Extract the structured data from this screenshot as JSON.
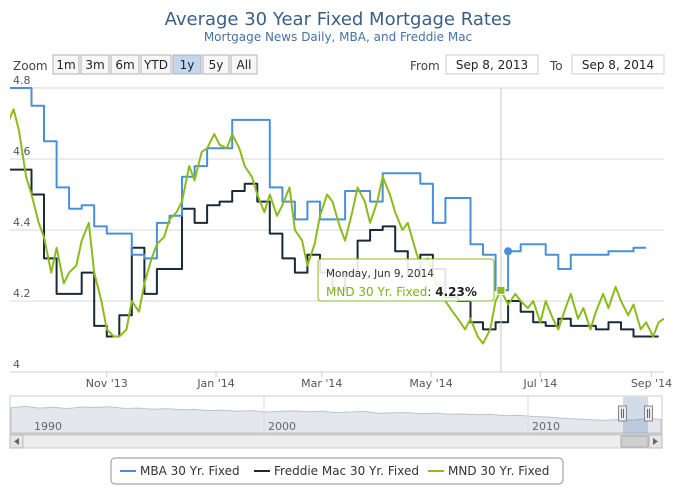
{
  "title": "Average 30 Year Fixed Mortgage Rates",
  "subtitle": "Mortgage News Daily, MBA, and Freddie Mac",
  "zoom": {
    "label": "Zoom",
    "buttons": [
      "1m",
      "3m",
      "6m",
      "YTD",
      "1y",
      "5y",
      "All"
    ],
    "active": "1y"
  },
  "range": {
    "from_label": "From",
    "from_value": "Sep 8, 2013",
    "to_label": "To",
    "to_value": "Sep 8, 2014"
  },
  "tooltip": {
    "date": "Monday, Jun 9, 2014",
    "series": "MND 30 Yr. Fixed",
    "value": "4.23%"
  },
  "navigator": {
    "year_labels": [
      "1990",
      "2000",
      "2010"
    ]
  },
  "colors": {
    "mba": "#4a8fd9",
    "freddie": "#1a2a38",
    "mnd": "#8bbb1c",
    "title": "#3a5f87",
    "subtitle": "#4572a7"
  },
  "chart_data": {
    "type": "line",
    "title": "Average 30 Year Fixed Mortgage Rates",
    "subtitle": "Mortgage News Daily, MBA, and Freddie Mac",
    "x_range": [
      "2013-09-08",
      "2014-09-08"
    ],
    "x_ticks": [
      "Nov '13",
      "Jan '14",
      "Mar '14",
      "May '14",
      "Jul '14",
      "Sep '14"
    ],
    "ylim": [
      4.0,
      4.8
    ],
    "y_ticks": [
      "4",
      "4.2",
      "4.4",
      "4.6",
      "4.8"
    ],
    "legend_position": "bottom-center",
    "series": [
      {
        "name": "MBA 30 Yr. Fixed",
        "color": "#4a8fd9",
        "step": true,
        "points": [
          [
            "2013-09-06",
            4.8
          ],
          [
            "2013-09-13",
            4.8
          ],
          [
            "2013-09-20",
            4.75
          ],
          [
            "2013-09-27",
            4.65
          ],
          [
            "2013-10-04",
            4.52
          ],
          [
            "2013-10-11",
            4.46
          ],
          [
            "2013-10-18",
            4.47
          ],
          [
            "2013-10-25",
            4.41
          ],
          [
            "2013-11-01",
            4.39
          ],
          [
            "2013-11-08",
            4.39
          ],
          [
            "2013-11-15",
            4.33
          ],
          [
            "2013-11-22",
            4.32
          ],
          [
            "2013-11-29",
            4.42
          ],
          [
            "2013-12-06",
            4.44
          ],
          [
            "2013-12-13",
            4.55
          ],
          [
            "2013-12-20",
            4.58
          ],
          [
            "2013-12-27",
            4.63
          ],
          [
            "2014-01-03",
            4.63
          ],
          [
            "2014-01-10",
            4.71
          ],
          [
            "2014-01-17",
            4.71
          ],
          [
            "2014-01-24",
            4.71
          ],
          [
            "2014-01-31",
            4.52
          ],
          [
            "2014-02-07",
            4.48
          ],
          [
            "2014-02-14",
            4.43
          ],
          [
            "2014-02-21",
            4.48
          ],
          [
            "2014-02-28",
            4.43
          ],
          [
            "2014-03-07",
            4.43
          ],
          [
            "2014-03-14",
            4.51
          ],
          [
            "2014-03-21",
            4.51
          ],
          [
            "2014-03-28",
            4.48
          ],
          [
            "2014-04-04",
            4.56
          ],
          [
            "2014-04-11",
            4.56
          ],
          [
            "2014-04-18",
            4.56
          ],
          [
            "2014-04-25",
            4.53
          ],
          [
            "2014-05-02",
            4.42
          ],
          [
            "2014-05-09",
            4.49
          ],
          [
            "2014-05-16",
            4.49
          ],
          [
            "2014-05-23",
            4.36
          ],
          [
            "2014-05-30",
            4.33
          ],
          [
            "2014-06-06",
            4.23
          ],
          [
            "2014-06-13",
            4.34
          ],
          [
            "2014-06-20",
            4.36
          ],
          [
            "2014-06-27",
            4.36
          ],
          [
            "2014-07-04",
            4.33
          ],
          [
            "2014-07-11",
            4.29
          ],
          [
            "2014-07-18",
            4.33
          ],
          [
            "2014-07-25",
            4.33
          ],
          [
            "2014-08-01",
            4.33
          ],
          [
            "2014-08-08",
            4.34
          ],
          [
            "2014-08-15",
            4.34
          ],
          [
            "2014-08-22",
            4.35
          ],
          [
            "2014-08-29",
            4.35
          ]
        ]
      },
      {
        "name": "Freddie Mac 30 Yr. Fixed",
        "color": "#1a2a38",
        "step": true,
        "points": [
          [
            "2013-09-06",
            4.57
          ],
          [
            "2013-09-13",
            4.57
          ],
          [
            "2013-09-20",
            4.5
          ],
          [
            "2013-09-27",
            4.32
          ],
          [
            "2013-10-04",
            4.22
          ],
          [
            "2013-10-11",
            4.22
          ],
          [
            "2013-10-18",
            4.28
          ],
          [
            "2013-10-25",
            4.13
          ],
          [
            "2013-11-01",
            4.1
          ],
          [
            "2013-11-08",
            4.16
          ],
          [
            "2013-11-15",
            4.35
          ],
          [
            "2013-11-22",
            4.22
          ],
          [
            "2013-11-29",
            4.29
          ],
          [
            "2013-12-06",
            4.29
          ],
          [
            "2013-12-13",
            4.46
          ],
          [
            "2013-12-20",
            4.42
          ],
          [
            "2013-12-27",
            4.47
          ],
          [
            "2014-01-03",
            4.48
          ],
          [
            "2014-01-10",
            4.51
          ],
          [
            "2014-01-17",
            4.53
          ],
          [
            "2014-01-24",
            4.48
          ],
          [
            "2014-01-31",
            4.39
          ],
          [
            "2014-02-07",
            4.32
          ],
          [
            "2014-02-14",
            4.28
          ],
          [
            "2014-02-21",
            4.33
          ],
          [
            "2014-02-28",
            4.28
          ],
          [
            "2014-03-07",
            4.23
          ],
          [
            "2014-03-14",
            4.28
          ],
          [
            "2014-03-21",
            4.37
          ],
          [
            "2014-03-28",
            4.4
          ],
          [
            "2014-04-04",
            4.41
          ],
          [
            "2014-04-11",
            4.34
          ],
          [
            "2014-04-18",
            4.27
          ],
          [
            "2014-04-25",
            4.33
          ],
          [
            "2014-05-02",
            4.29
          ],
          [
            "2014-05-09",
            4.21
          ],
          [
            "2014-05-16",
            4.2
          ],
          [
            "2014-05-23",
            4.14
          ],
          [
            "2014-05-30",
            4.12
          ],
          [
            "2014-06-06",
            4.14
          ],
          [
            "2014-06-13",
            4.2
          ],
          [
            "2014-06-20",
            4.17
          ],
          [
            "2014-06-27",
            4.14
          ],
          [
            "2014-07-04",
            4.13
          ],
          [
            "2014-07-11",
            4.15
          ],
          [
            "2014-07-18",
            4.13
          ],
          [
            "2014-07-25",
            4.13
          ],
          [
            "2014-08-01",
            4.12
          ],
          [
            "2014-08-08",
            4.14
          ],
          [
            "2014-08-15",
            4.12
          ],
          [
            "2014-08-22",
            4.1
          ],
          [
            "2014-08-29",
            4.1
          ],
          [
            "2014-09-05",
            4.1
          ]
        ]
      },
      {
        "name": "MND 30 Yr. Fixed",
        "color": "#8bbb1c",
        "step": false,
        "points": [
          [
            "2013-09-05",
            4.68
          ],
          [
            "2013-09-10",
            4.74
          ],
          [
            "2013-09-13",
            4.68
          ],
          [
            "2013-09-17",
            4.55
          ],
          [
            "2013-09-20",
            4.5
          ],
          [
            "2013-09-24",
            4.42
          ],
          [
            "2013-09-27",
            4.38
          ],
          [
            "2013-10-01",
            4.28
          ],
          [
            "2013-10-04",
            4.35
          ],
          [
            "2013-10-08",
            4.25
          ],
          [
            "2013-10-11",
            4.28
          ],
          [
            "2013-10-15",
            4.3
          ],
          [
            "2013-10-18",
            4.37
          ],
          [
            "2013-10-22",
            4.42
          ],
          [
            "2013-10-25",
            4.28
          ],
          [
            "2013-10-29",
            4.2
          ],
          [
            "2013-11-01",
            4.12
          ],
          [
            "2013-11-05",
            4.1
          ],
          [
            "2013-11-08",
            4.1
          ],
          [
            "2013-11-12",
            4.12
          ],
          [
            "2013-11-15",
            4.2
          ],
          [
            "2013-11-19",
            4.17
          ],
          [
            "2013-11-22",
            4.25
          ],
          [
            "2013-11-26",
            4.32
          ],
          [
            "2013-11-29",
            4.36
          ],
          [
            "2013-12-03",
            4.38
          ],
          [
            "2013-12-06",
            4.43
          ],
          [
            "2013-12-10",
            4.45
          ],
          [
            "2013-12-13",
            4.48
          ],
          [
            "2013-12-17",
            4.58
          ],
          [
            "2013-12-20",
            4.54
          ],
          [
            "2013-12-24",
            4.62
          ],
          [
            "2013-12-27",
            4.63
          ],
          [
            "2013-12-31",
            4.67
          ],
          [
            "2014-01-03",
            4.64
          ],
          [
            "2014-01-07",
            4.63
          ],
          [
            "2014-01-10",
            4.67
          ],
          [
            "2014-01-14",
            4.63
          ],
          [
            "2014-01-17",
            4.58
          ],
          [
            "2014-01-21",
            4.55
          ],
          [
            "2014-01-24",
            4.5
          ],
          [
            "2014-01-28",
            4.45
          ],
          [
            "2014-01-31",
            4.5
          ],
          [
            "2014-02-04",
            4.44
          ],
          [
            "2014-02-07",
            4.47
          ],
          [
            "2014-02-11",
            4.52
          ],
          [
            "2014-02-14",
            4.4
          ],
          [
            "2014-02-18",
            4.37
          ],
          [
            "2014-02-21",
            4.3
          ],
          [
            "2014-02-25",
            4.36
          ],
          [
            "2014-02-28",
            4.44
          ],
          [
            "2014-03-04",
            4.5
          ],
          [
            "2014-03-07",
            4.48
          ],
          [
            "2014-03-11",
            4.41
          ],
          [
            "2014-03-14",
            4.37
          ],
          [
            "2014-03-18",
            4.45
          ],
          [
            "2014-03-21",
            4.52
          ],
          [
            "2014-03-25",
            4.48
          ],
          [
            "2014-03-28",
            4.42
          ],
          [
            "2014-04-01",
            4.48
          ],
          [
            "2014-04-04",
            4.55
          ],
          [
            "2014-04-08",
            4.5
          ],
          [
            "2014-04-11",
            4.45
          ],
          [
            "2014-04-15",
            4.4
          ],
          [
            "2014-04-18",
            4.42
          ],
          [
            "2014-04-22",
            4.35
          ],
          [
            "2014-04-25",
            4.3
          ],
          [
            "2014-04-29",
            4.32
          ],
          [
            "2014-05-02",
            4.28
          ],
          [
            "2014-05-06",
            4.22
          ],
          [
            "2014-05-09",
            4.2
          ],
          [
            "2014-05-13",
            4.17
          ],
          [
            "2014-05-16",
            4.15
          ],
          [
            "2014-05-20",
            4.12
          ],
          [
            "2014-05-23",
            4.15
          ],
          [
            "2014-05-27",
            4.1
          ],
          [
            "2014-05-30",
            4.08
          ],
          [
            "2014-06-03",
            4.12
          ],
          [
            "2014-06-06",
            4.2
          ],
          [
            "2014-06-09",
            4.23
          ],
          [
            "2014-06-13",
            4.19
          ],
          [
            "2014-06-17",
            4.22
          ],
          [
            "2014-06-20",
            4.2
          ],
          [
            "2014-06-24",
            4.18
          ],
          [
            "2014-06-27",
            4.2
          ],
          [
            "2014-07-01",
            4.14
          ],
          [
            "2014-07-04",
            4.2
          ],
          [
            "2014-07-08",
            4.15
          ],
          [
            "2014-07-11",
            4.12
          ],
          [
            "2014-07-15",
            4.18
          ],
          [
            "2014-07-18",
            4.22
          ],
          [
            "2014-07-22",
            4.15
          ],
          [
            "2014-07-25",
            4.18
          ],
          [
            "2014-07-29",
            4.12
          ],
          [
            "2014-08-01",
            4.17
          ],
          [
            "2014-08-05",
            4.22
          ],
          [
            "2014-08-08",
            4.18
          ],
          [
            "2014-08-12",
            4.24
          ],
          [
            "2014-08-15",
            4.2
          ],
          [
            "2014-08-19",
            4.16
          ],
          [
            "2014-08-22",
            4.19
          ],
          [
            "2014-08-26",
            4.12
          ],
          [
            "2014-08-29",
            4.14
          ],
          [
            "2014-09-02",
            4.1
          ],
          [
            "2014-09-05",
            4.14
          ],
          [
            "2014-09-08",
            4.15
          ]
        ]
      }
    ]
  }
}
